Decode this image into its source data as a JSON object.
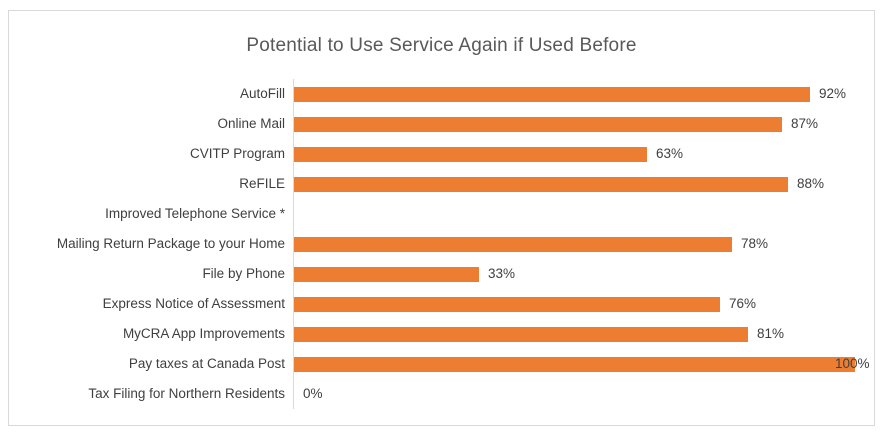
{
  "chart_data": {
    "type": "bar",
    "orientation": "horizontal",
    "title": "Potential to Use Service Again if Used Before",
    "categories": [
      "AutoFill",
      "Online Mail",
      "CVITP Program",
      "ReFILE",
      "Improved Telephone Service *",
      "Mailing Return Package to your Home",
      "File by Phone",
      "Express Notice of Assessment",
      "MyCRA App Improvements",
      "Pay taxes at Canada Post",
      "Tax Filing for Northern Residents"
    ],
    "values": [
      92,
      87,
      63,
      88,
      null,
      78,
      33,
      76,
      81,
      100,
      0
    ],
    "data_labels": [
      "92%",
      "87%",
      "63%",
      "88%",
      "",
      "78%",
      "33%",
      "76%",
      "81%",
      "100%",
      "0%"
    ],
    "xlabel": "",
    "ylabel": "",
    "xlim": [
      0,
      100
    ],
    "grid": false,
    "legend": "none",
    "colors": {
      "bar": "#ed7d31",
      "title_text": "#595959",
      "label_text": "#3f3f3f",
      "axis_line": "#d9d9d9",
      "frame_border": "#d9d9d9",
      "background": "#ffffff"
    }
  }
}
